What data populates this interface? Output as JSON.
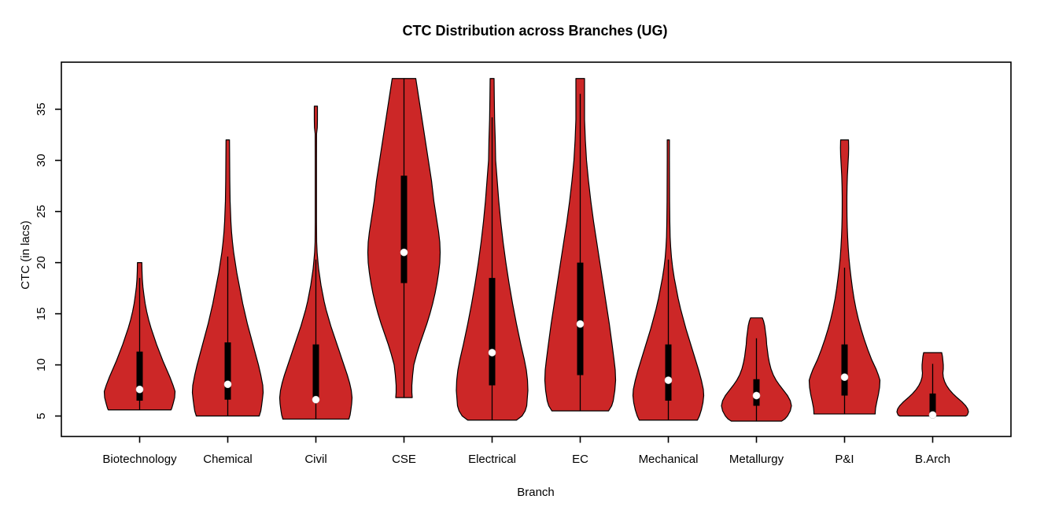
{
  "page": {
    "background": "#FFFFFF"
  },
  "chart_data": {
    "type": "violin",
    "title": "CTC Distribution across Branches (UG)",
    "xlabel": "Branch",
    "ylabel": "CTC (in lacs)",
    "ylim": [
      3.0,
      39.6
    ],
    "y_ticks": [
      5,
      10,
      15,
      20,
      25,
      30,
      35
    ],
    "grid": false,
    "legend": "none",
    "categories": [
      "Biotechnology",
      "Chemical",
      "Civil",
      "CSE",
      "Electrical",
      "EC",
      "Mechanical",
      "Metallurgy",
      "P&I",
      "B.Arch"
    ],
    "colors": {
      "violin_fill": "#CC2727",
      "violin_outline": "#000000",
      "box": "#000000",
      "whisker": "#000000",
      "median_dot": "#FFFFFF",
      "axis": "#000000",
      "text": "#000000",
      "background": "#FFFFFF"
    },
    "series": [
      {
        "name": "Biotechnology",
        "median": 7.6,
        "q1": 6.5,
        "q3": 11.3,
        "whisker_low": 5.6,
        "whisker_high": 18.5,
        "min": 5.6,
        "max": 20,
        "profile": [
          [
            20,
            2.8
          ],
          [
            19.2,
            3
          ],
          [
            18.4,
            3.4
          ],
          [
            17.6,
            4.2
          ],
          [
            16.8,
            5.5
          ],
          [
            16,
            7
          ],
          [
            15.2,
            9
          ],
          [
            14.4,
            11.5
          ],
          [
            13.6,
            14.5
          ],
          [
            12.8,
            18
          ],
          [
            12,
            21.5
          ],
          [
            11.2,
            25.5
          ],
          [
            10.4,
            29.5
          ],
          [
            9.6,
            34
          ],
          [
            8.8,
            38.5
          ],
          [
            8,
            42.5
          ],
          [
            7.4,
            45
          ],
          [
            6.8,
            44.5
          ],
          [
            6.2,
            42.5
          ],
          [
            5.8,
            41
          ],
          [
            5.6,
            40
          ]
        ]
      },
      {
        "name": "Chemical",
        "median": 8.1,
        "q1": 6.6,
        "q3": 12.2,
        "whisker_low": 5.0,
        "whisker_high": 20.6,
        "min": 5.0,
        "max": 32,
        "profile": [
          [
            32,
            2.2
          ],
          [
            30,
            2.4
          ],
          [
            28,
            2.6
          ],
          [
            26,
            3
          ],
          [
            24,
            4
          ],
          [
            23,
            4.8
          ],
          [
            22,
            6
          ],
          [
            21,
            7.5
          ],
          [
            20,
            9.5
          ],
          [
            19,
            11.5
          ],
          [
            18,
            14
          ],
          [
            17,
            16.5
          ],
          [
            16,
            19
          ],
          [
            15,
            22
          ],
          [
            14,
            25
          ],
          [
            13,
            28.5
          ],
          [
            12,
            32
          ],
          [
            11,
            35.5
          ],
          [
            10,
            39
          ],
          [
            9,
            42
          ],
          [
            8,
            44.5
          ],
          [
            7.3,
            45
          ],
          [
            6.6,
            44
          ],
          [
            6,
            43
          ],
          [
            5.5,
            42
          ],
          [
            5,
            40
          ]
        ]
      },
      {
        "name": "Civil",
        "median": 6.6,
        "q1": 6.5,
        "q3": 12.0,
        "whisker_low": 4.7,
        "whisker_high": 20.3,
        "min": 4.7,
        "max": 35.3,
        "profile": [
          [
            35.3,
            2
          ],
          [
            34,
            2
          ],
          [
            33.2,
            1.8
          ],
          [
            32.6,
            0.9
          ],
          [
            30,
            0.8
          ],
          [
            27,
            0.8
          ],
          [
            24,
            0.8
          ],
          [
            22,
            1
          ],
          [
            21,
            1.6
          ],
          [
            20.2,
            2.5
          ],
          [
            19.4,
            3.5
          ],
          [
            18.6,
            5
          ],
          [
            17.8,
            6.5
          ],
          [
            17,
            8.5
          ],
          [
            16.2,
            10.5
          ],
          [
            15.4,
            13
          ],
          [
            14.6,
            16
          ],
          [
            13.8,
            19
          ],
          [
            13,
            22.5
          ],
          [
            12.2,
            26
          ],
          [
            11.4,
            29.5
          ],
          [
            10.6,
            33
          ],
          [
            9.8,
            36.5
          ],
          [
            9,
            40
          ],
          [
            8.2,
            43
          ],
          [
            7.5,
            45
          ],
          [
            6.8,
            46
          ],
          [
            6.2,
            45.5
          ],
          [
            5.6,
            44.5
          ],
          [
            5.1,
            43.5
          ],
          [
            4.7,
            42
          ]
        ]
      },
      {
        "name": "CSE",
        "median": 21.0,
        "q1": 18.0,
        "q3": 28.5,
        "whisker_low": 6.8,
        "whisker_high": 38,
        "min": 6.8,
        "max": 38,
        "profile": [
          [
            38,
            15
          ],
          [
            37,
            17
          ],
          [
            36,
            19
          ],
          [
            35,
            21
          ],
          [
            34,
            23
          ],
          [
            33,
            25
          ],
          [
            32,
            27
          ],
          [
            31,
            29
          ],
          [
            30,
            31
          ],
          [
            29,
            33
          ],
          [
            28,
            35
          ],
          [
            27,
            36.5
          ],
          [
            26,
            38
          ],
          [
            25,
            40
          ],
          [
            24,
            42
          ],
          [
            23,
            44
          ],
          [
            22,
            45.5
          ],
          [
            21,
            46
          ],
          [
            20,
            45.5
          ],
          [
            19,
            44
          ],
          [
            18,
            42
          ],
          [
            17,
            39.5
          ],
          [
            16,
            36.5
          ],
          [
            15,
            33
          ],
          [
            14,
            29
          ],
          [
            13,
            24.5
          ],
          [
            12,
            20
          ],
          [
            11,
            16
          ],
          [
            10,
            12.5
          ],
          [
            9,
            11
          ],
          [
            8,
            10
          ],
          [
            7.3,
            10
          ],
          [
            6.8,
            10.5
          ]
        ]
      },
      {
        "name": "Electrical",
        "median": 11.2,
        "q1": 8.0,
        "q3": 18.5,
        "whisker_low": 4.6,
        "whisker_high": 34.2,
        "min": 4.6,
        "max": 38,
        "profile": [
          [
            38,
            2.5
          ],
          [
            36,
            2.8
          ],
          [
            34,
            3.2
          ],
          [
            32,
            4
          ],
          [
            30,
            4.5
          ],
          [
            28,
            6.5
          ],
          [
            26,
            8.5
          ],
          [
            24,
            11
          ],
          [
            22,
            14
          ],
          [
            20,
            17.5
          ],
          [
            18,
            21.5
          ],
          [
            16,
            26
          ],
          [
            14,
            31
          ],
          [
            12,
            36.5
          ],
          [
            10.5,
            41
          ],
          [
            9.5,
            43.5
          ],
          [
            8.5,
            45
          ],
          [
            7.5,
            45.5
          ],
          [
            6.5,
            44.5
          ],
          [
            6,
            44
          ],
          [
            5.5,
            42
          ],
          [
            5,
            38
          ],
          [
            4.6,
            31
          ]
        ]
      },
      {
        "name": "EC",
        "median": 14.0,
        "q1": 9.0,
        "q3": 20.0,
        "whisker_low": 5.5,
        "whisker_high": 36.5,
        "min": 5.5,
        "max": 38,
        "profile": [
          [
            38,
            5.5
          ],
          [
            36,
            5.5
          ],
          [
            34,
            5.5
          ],
          [
            32,
            6.5
          ],
          [
            30,
            8
          ],
          [
            28,
            10.5
          ],
          [
            26,
            13.5
          ],
          [
            24,
            17
          ],
          [
            22,
            21
          ],
          [
            20,
            25
          ],
          [
            18,
            29
          ],
          [
            16,
            33
          ],
          [
            14,
            37
          ],
          [
            12,
            40.5
          ],
          [
            10.5,
            43
          ],
          [
            9.5,
            44.5
          ],
          [
            8.5,
            45
          ],
          [
            7.5,
            44
          ],
          [
            6.5,
            42
          ],
          [
            6,
            40
          ],
          [
            5.5,
            36
          ]
        ]
      },
      {
        "name": "Mechanical",
        "median": 8.5,
        "q1": 6.5,
        "q3": 12.0,
        "whisker_low": 4.6,
        "whisker_high": 20.3,
        "min": 4.6,
        "max": 32,
        "profile": [
          [
            32,
            1.4
          ],
          [
            30,
            1.4
          ],
          [
            28,
            1.5
          ],
          [
            26,
            1.6
          ],
          [
            24,
            1.9
          ],
          [
            22.5,
            2.3
          ],
          [
            21.5,
            3
          ],
          [
            20.5,
            4
          ],
          [
            19.5,
            5.5
          ],
          [
            18.5,
            7.5
          ],
          [
            17.5,
            10
          ],
          [
            16.5,
            12.5
          ],
          [
            15.5,
            15.5
          ],
          [
            14.5,
            19
          ],
          [
            13.5,
            22.5
          ],
          [
            12.5,
            26.5
          ],
          [
            11.5,
            30.5
          ],
          [
            10.5,
            34.5
          ],
          [
            9.5,
            38.5
          ],
          [
            8.5,
            42
          ],
          [
            7.6,
            44.5
          ],
          [
            7,
            45
          ],
          [
            6.3,
            44
          ],
          [
            5.6,
            42
          ],
          [
            5,
            39.5
          ],
          [
            4.6,
            37
          ]
        ]
      },
      {
        "name": "Metallurgy",
        "median": 7.0,
        "q1": 6.0,
        "q3": 8.6,
        "whisker_low": 4.5,
        "whisker_high": 12.6,
        "min": 4.5,
        "max": 14.6,
        "profile": [
          [
            14.6,
            7.5
          ],
          [
            14.3,
            9
          ],
          [
            13.8,
            10.5
          ],
          [
            13.2,
            11.5
          ],
          [
            12.6,
            12.5
          ],
          [
            12,
            13
          ],
          [
            11.4,
            14
          ],
          [
            10.8,
            15
          ],
          [
            10.2,
            16.5
          ],
          [
            9.6,
            18.5
          ],
          [
            9,
            21.5
          ],
          [
            8.5,
            25
          ],
          [
            8,
            29.5
          ],
          [
            7.5,
            34.5
          ],
          [
            7,
            39.5
          ],
          [
            6.5,
            43
          ],
          [
            6,
            44.5
          ],
          [
            5.5,
            43
          ],
          [
            5,
            39.5
          ],
          [
            4.7,
            36
          ],
          [
            4.5,
            32
          ]
        ]
      },
      {
        "name": "P&I",
        "median": 8.8,
        "q1": 7.0,
        "q3": 12.0,
        "whisker_low": 5.2,
        "whisker_high": 19.5,
        "min": 5.2,
        "max": 32,
        "profile": [
          [
            32,
            5
          ],
          [
            31.2,
            5.2
          ],
          [
            30.5,
            5
          ],
          [
            29.5,
            4.3
          ],
          [
            28.5,
            3.6
          ],
          [
            27.5,
            3.2
          ],
          [
            26.5,
            3
          ],
          [
            25.5,
            3
          ],
          [
            24.5,
            3.1
          ],
          [
            23.5,
            3.4
          ],
          [
            22.5,
            3.9
          ],
          [
            21.5,
            4.6
          ],
          [
            20.5,
            5.5
          ],
          [
            19.5,
            6.8
          ],
          [
            18.5,
            8.3
          ],
          [
            17.5,
            10
          ],
          [
            16.5,
            12
          ],
          [
            15.5,
            14.5
          ],
          [
            14.5,
            17.5
          ],
          [
            13.5,
            21
          ],
          [
            12.5,
            25
          ],
          [
            11.5,
            29.5
          ],
          [
            10.5,
            34.5
          ],
          [
            9.6,
            40
          ],
          [
            9,
            43
          ],
          [
            8.5,
            45
          ],
          [
            7.8,
            44.5
          ],
          [
            7.1,
            43
          ],
          [
            6.4,
            41
          ],
          [
            5.8,
            39.5
          ],
          [
            5.4,
            39
          ],
          [
            5.2,
            39
          ]
        ]
      },
      {
        "name": "B.Arch",
        "median": 5.1,
        "q1": 5.0,
        "q3": 7.2,
        "whisker_low": 5.0,
        "whisker_high": 10.1,
        "min": 5.0,
        "max": 11.2,
        "profile": [
          [
            11.2,
            11.5
          ],
          [
            10.8,
            12.5
          ],
          [
            10.4,
            13
          ],
          [
            10,
            13.5
          ],
          [
            9.6,
            13.5
          ],
          [
            9.2,
            13
          ],
          [
            8.8,
            13.5
          ],
          [
            8.4,
            15
          ],
          [
            8,
            17.5
          ],
          [
            7.6,
            21
          ],
          [
            7.2,
            25.5
          ],
          [
            6.8,
            31
          ],
          [
            6.4,
            37
          ],
          [
            6,
            42
          ],
          [
            5.7,
            44.5
          ],
          [
            5.4,
            45.5
          ],
          [
            5.1,
            44
          ],
          [
            5,
            42
          ]
        ]
      }
    ]
  }
}
